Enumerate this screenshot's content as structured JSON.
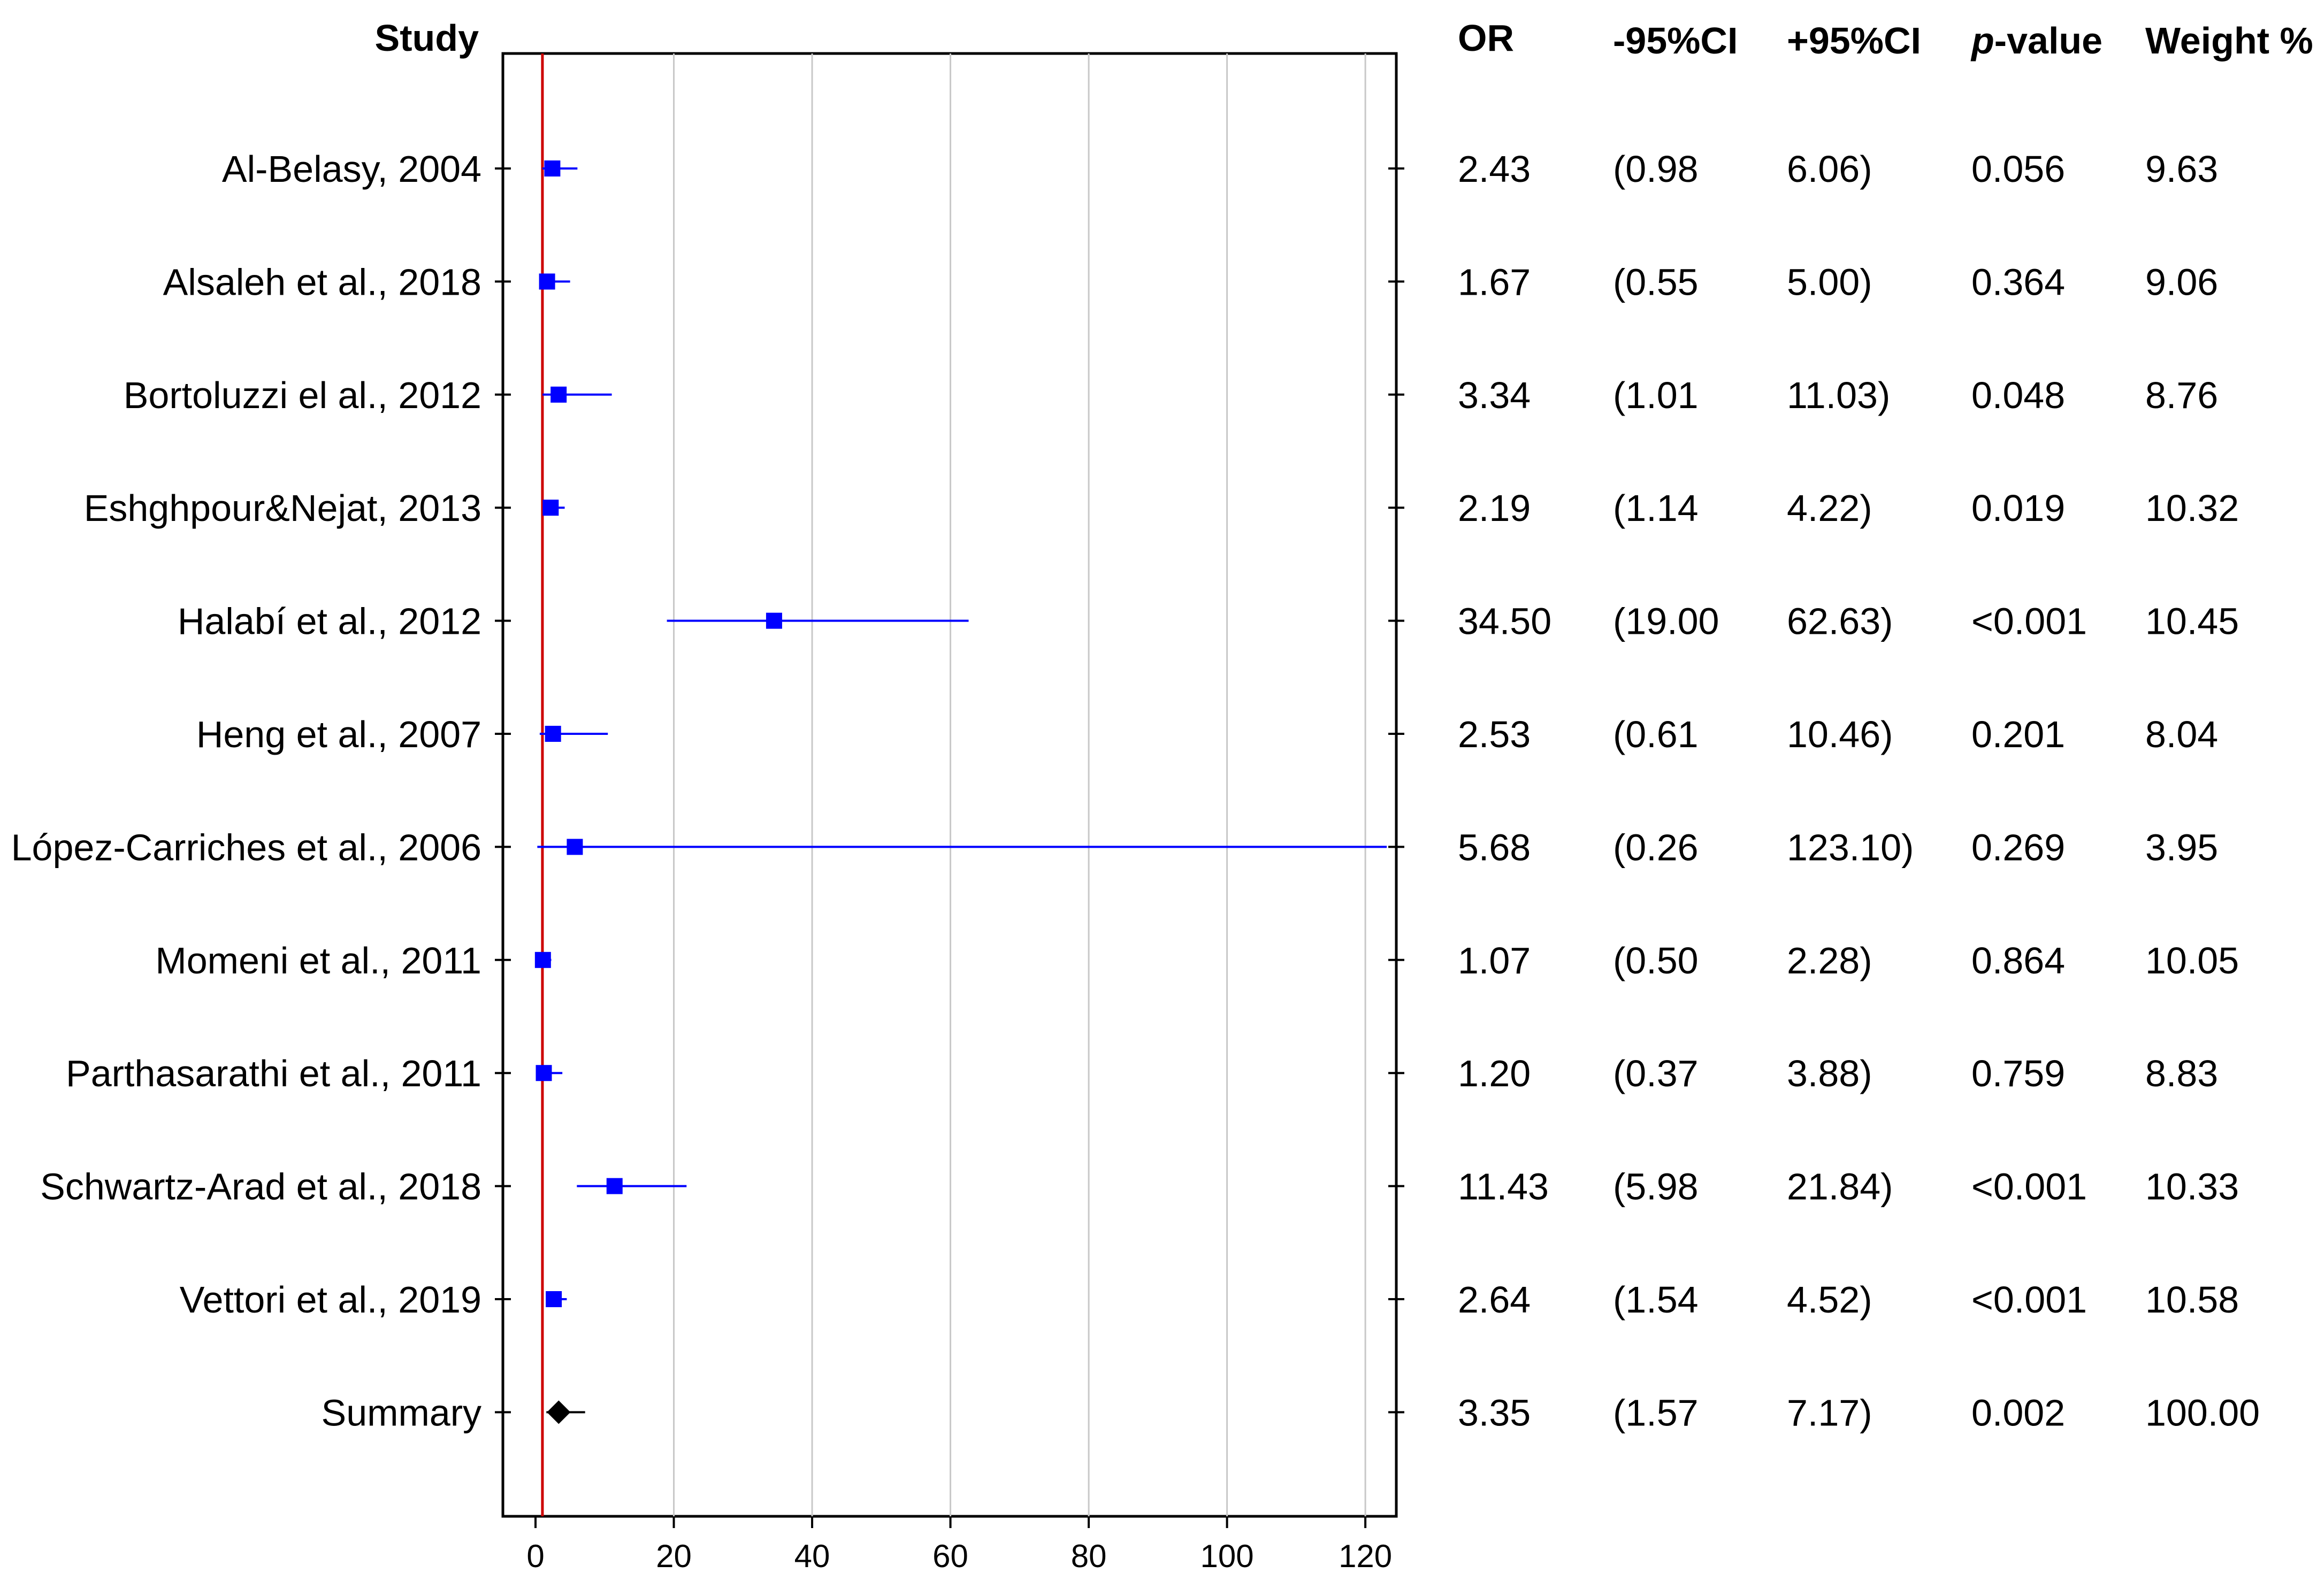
{
  "headers": {
    "study": "Study",
    "or": "OR",
    "lower_ci": "-95%CI",
    "upper_ci": "+95%CI",
    "p_value_italic": "p",
    "p_value_rest": "-value",
    "weight": "Weight %"
  },
  "colors": {
    "study_marker": "#0000ff",
    "summary_marker": "#000000",
    "reference_line": "#cc0000",
    "gridline": "#c8c8c8"
  },
  "chart_data": {
    "type": "scatter",
    "subtype": "forest-plot",
    "title": "",
    "xlabel": "",
    "ylabel": "",
    "xlim": [
      -5,
      125
    ],
    "xticks": [
      0,
      20,
      40,
      60,
      80,
      100,
      120
    ],
    "grid": true,
    "reference_line_x": 1,
    "studies": [
      {
        "name": "Al-Belasy, 2004",
        "or": 2.43,
        "lower": 0.98,
        "upper": 6.06,
        "or_text": "2.43",
        "lower_text": "(0.98",
        "upper_text": "6.06)",
        "p_text": "0.056",
        "weight_text": "9.63"
      },
      {
        "name": "Alsaleh et al., 2018",
        "or": 1.67,
        "lower": 0.55,
        "upper": 5.0,
        "or_text": "1.67",
        "lower_text": "(0.55",
        "upper_text": "5.00)",
        "p_text": "0.364",
        "weight_text": "9.06"
      },
      {
        "name": "Bortoluzzi el al., 2012",
        "or": 3.34,
        "lower": 1.01,
        "upper": 11.03,
        "or_text": "3.34",
        "lower_text": "(1.01",
        "upper_text": "11.03)",
        "p_text": "0.048",
        "weight_text": "8.76"
      },
      {
        "name": "Eshghpour&Nejat, 2013",
        "or": 2.19,
        "lower": 1.14,
        "upper": 4.22,
        "or_text": "2.19",
        "lower_text": "(1.14",
        "upper_text": "4.22)",
        "p_text": "0.019",
        "weight_text": "10.32"
      },
      {
        "name": "Halabí et al., 2012",
        "or": 34.5,
        "lower": 19.0,
        "upper": 62.63,
        "or_text": "34.50",
        "lower_text": "(19.00",
        "upper_text": "62.63)",
        "p_text": "<0.001",
        "weight_text": "10.45"
      },
      {
        "name": "Heng et al., 2007",
        "or": 2.53,
        "lower": 0.61,
        "upper": 10.46,
        "or_text": "2.53",
        "lower_text": "(0.61",
        "upper_text": "10.46)",
        "p_text": "0.201",
        "weight_text": "8.04"
      },
      {
        "name": "López-Carriches et al., 2006",
        "or": 5.68,
        "lower": 0.26,
        "upper": 123.1,
        "or_text": "5.68",
        "lower_text": "(0.26",
        "upper_text": "123.10)",
        "p_text": "0.269",
        "weight_text": "3.95"
      },
      {
        "name": "Momeni et al., 2011",
        "or": 1.07,
        "lower": 0.5,
        "upper": 2.28,
        "or_text": "1.07",
        "lower_text": "(0.50",
        "upper_text": "2.28)",
        "p_text": "0.864",
        "weight_text": "10.05"
      },
      {
        "name": "Parthasarathi et al., 2011",
        "or": 1.2,
        "lower": 0.37,
        "upper": 3.88,
        "or_text": "1.20",
        "lower_text": "(0.37",
        "upper_text": "3.88)",
        "p_text": "0.759",
        "weight_text": "8.83"
      },
      {
        "name": "Schwartz-Arad et al., 2018",
        "or": 11.43,
        "lower": 5.98,
        "upper": 21.84,
        "or_text": "11.43",
        "lower_text": "(5.98",
        "upper_text": "21.84)",
        "p_text": "<0.001",
        "weight_text": "10.33"
      },
      {
        "name": "Vettori et al., 2019",
        "or": 2.64,
        "lower": 1.54,
        "upper": 4.52,
        "or_text": "2.64",
        "lower_text": "(1.54",
        "upper_text": "4.52)",
        "p_text": "<0.001",
        "weight_text": "10.58"
      }
    ],
    "summary": {
      "name": "Summary",
      "or": 3.35,
      "lower": 1.57,
      "upper": 7.17,
      "or_text": "3.35",
      "lower_text": "(1.57",
      "upper_text": "7.17)",
      "p_text": "0.002",
      "weight_text": "100.00"
    }
  }
}
